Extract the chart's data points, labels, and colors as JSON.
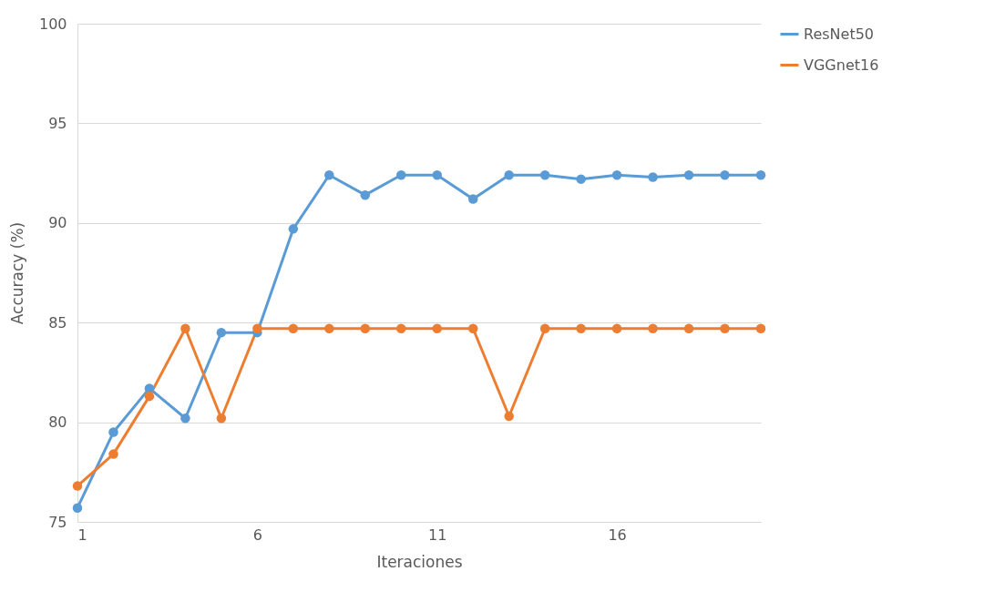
{
  "chart_data": {
    "type": "line",
    "xlabel": "Iteraciones",
    "ylabel": "Accuracy (%)",
    "x": [
      1,
      2,
      3,
      4,
      5,
      6,
      7,
      8,
      9,
      10,
      11,
      12,
      13,
      14,
      15,
      16,
      17,
      18,
      19,
      20
    ],
    "series": [
      {
        "name": "ResNet50",
        "color": "#5b9bd5",
        "values": [
          75.7,
          79.5,
          81.7,
          80.2,
          84.5,
          84.5,
          89.7,
          92.4,
          91.4,
          92.4,
          92.4,
          91.2,
          92.4,
          92.4,
          92.2,
          92.4,
          92.3,
          92.4,
          92.4,
          92.4
        ]
      },
      {
        "name": "VGGnet16",
        "color": "#ed7d31",
        "values": [
          76.8,
          78.4,
          81.3,
          84.7,
          80.2,
          84.7,
          84.7,
          84.7,
          84.7,
          84.7,
          84.7,
          84.7,
          80.3,
          84.7,
          84.7,
          84.7,
          84.7,
          84.7,
          84.7,
          84.7
        ]
      }
    ],
    "xlim": [
      1,
      20
    ],
    "xticks": [
      1,
      6,
      11,
      16
    ],
    "ylim": [
      75,
      100
    ],
    "yticks": [
      75,
      80,
      85,
      90,
      95,
      100
    ],
    "grid": "y",
    "legend": "right",
    "marker": "circle",
    "line_style": "solid"
  }
}
